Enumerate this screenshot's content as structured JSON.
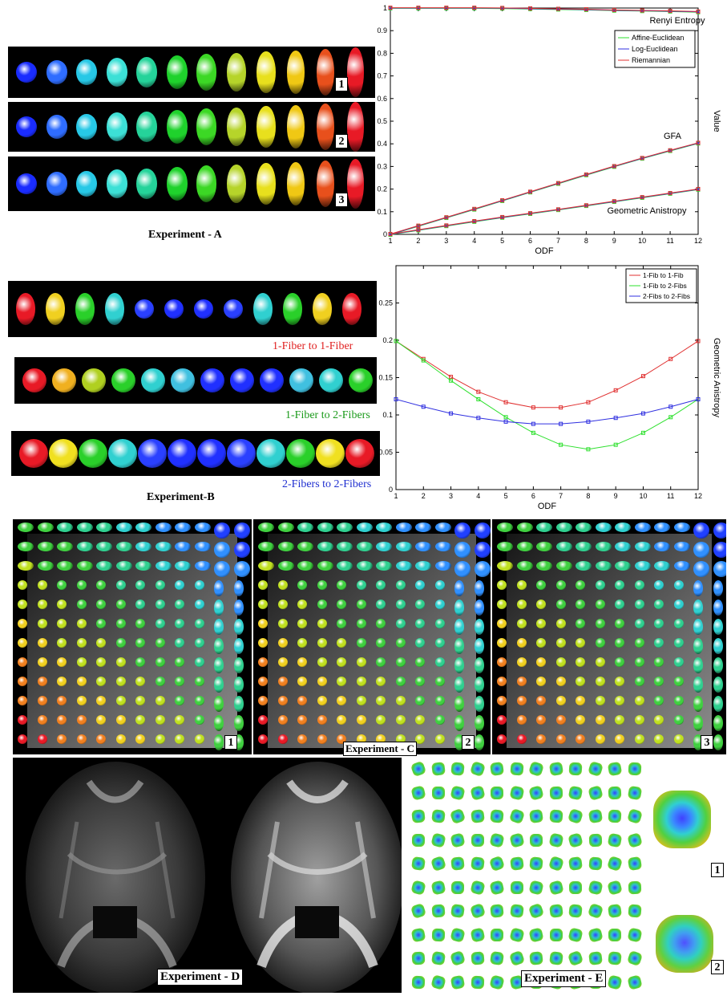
{
  "experiment_a": {
    "caption": "Experiment - A",
    "strip_labels": [
      "1",
      "2",
      "3"
    ],
    "colors": [
      "#1a2cff",
      "#2f6dff",
      "#27c8e6",
      "#3ce0d6",
      "#25d39a",
      "#1fd22c",
      "#3cd825",
      "#b6d42a",
      "#e8e01d",
      "#f0c814",
      "#e8501c",
      "#e81a26"
    ]
  },
  "experiment_b": {
    "caption": "Experiment-B",
    "row_labels": [
      "1-Fiber to 1-Fiber",
      "1-Fiber to 2-Fibers",
      "2-Fibers to 2-Fibers"
    ],
    "row_label_colors": [
      "#e01f1f",
      "#1a9a1a",
      "#1f2fd0"
    ]
  },
  "experiment_c": {
    "caption": "Experiment - C",
    "panel_labels": [
      "1",
      "2",
      "3"
    ]
  },
  "experiment_d": {
    "caption": "Experiment - D"
  },
  "experiment_e": {
    "caption": "Experiment - E",
    "zoom_labels": [
      "1",
      "2"
    ]
  },
  "chart_data": [
    {
      "type": "line",
      "title": "",
      "xlabel": "ODF",
      "ylabel": "Value",
      "x": [
        1,
        2,
        3,
        4,
        5,
        6,
        7,
        8,
        9,
        10,
        11,
        12
      ],
      "xlim": [
        1,
        12
      ],
      "ylim": [
        0,
        1
      ],
      "xticks": [
        "1",
        "2",
        "3",
        "4",
        "5",
        "6",
        "7",
        "8",
        "9",
        "10",
        "11",
        "12"
      ],
      "yticks": [
        "0",
        "0.1",
        "0.2",
        "0.3",
        "0.4",
        "0.5",
        "0.6",
        "0.7",
        "0.8",
        "0.9",
        "1"
      ],
      "legend": {
        "placement": "top-right",
        "entries": [
          "Affine-Euclidean",
          "Log-Euclidean",
          "Riemannian"
        ]
      },
      "series_colors": [
        "#2ee02e",
        "#3030e0",
        "#e03030"
      ],
      "annotations": [
        "Renyi Entropy",
        "GFA",
        "Geometric Anistropy"
      ],
      "groups": [
        {
          "label": "Renyi Entropy",
          "values": [
            1.0,
            1.0,
            1.0,
            1.0,
            0.999,
            0.997,
            0.995,
            0.993,
            0.99,
            0.988,
            0.986,
            0.983
          ]
        },
        {
          "label": "GFA",
          "values": [
            0.0,
            0.037,
            0.074,
            0.111,
            0.149,
            0.187,
            0.225,
            0.263,
            0.3,
            0.336,
            0.37,
            0.403
          ]
        },
        {
          "label": "Geometric Anistropy",
          "values": [
            0.0,
            0.019,
            0.038,
            0.057,
            0.075,
            0.092,
            0.109,
            0.127,
            0.145,
            0.163,
            0.181,
            0.199
          ]
        }
      ]
    },
    {
      "type": "line",
      "title": "",
      "xlabel": "ODF",
      "ylabel": "Geometric Anistropy",
      "x": [
        1,
        2,
        3,
        4,
        5,
        6,
        7,
        8,
        9,
        10,
        11,
        12
      ],
      "xlim": [
        1,
        12
      ],
      "ylim": [
        0,
        0.3
      ],
      "xticks": [
        "1",
        "2",
        "3",
        "4",
        "5",
        "6",
        "7",
        "8",
        "9",
        "10",
        "11",
        "12"
      ],
      "yticks": [
        "0",
        "0.05",
        "0.1",
        "0.15",
        "0.2",
        "0.25"
      ],
      "legend": {
        "placement": "top-right"
      },
      "series": [
        {
          "name": "1-Fib to 1-Fib",
          "color": "#e03030",
          "values": [
            0.199,
            0.175,
            0.151,
            0.131,
            0.117,
            0.11,
            0.11,
            0.117,
            0.133,
            0.152,
            0.175,
            0.199
          ]
        },
        {
          "name": "1-Fib to 2-Fibs",
          "color": "#2ee02e",
          "values": [
            0.199,
            0.173,
            0.146,
            0.121,
            0.097,
            0.076,
            0.06,
            0.054,
            0.06,
            0.076,
            0.097,
            0.121
          ]
        },
        {
          "name": "2-Fibs to 2-Fibs",
          "color": "#3030e0",
          "values": [
            0.121,
            0.111,
            0.102,
            0.096,
            0.091,
            0.088,
            0.088,
            0.091,
            0.096,
            0.102,
            0.111,
            0.121
          ]
        }
      ]
    }
  ]
}
